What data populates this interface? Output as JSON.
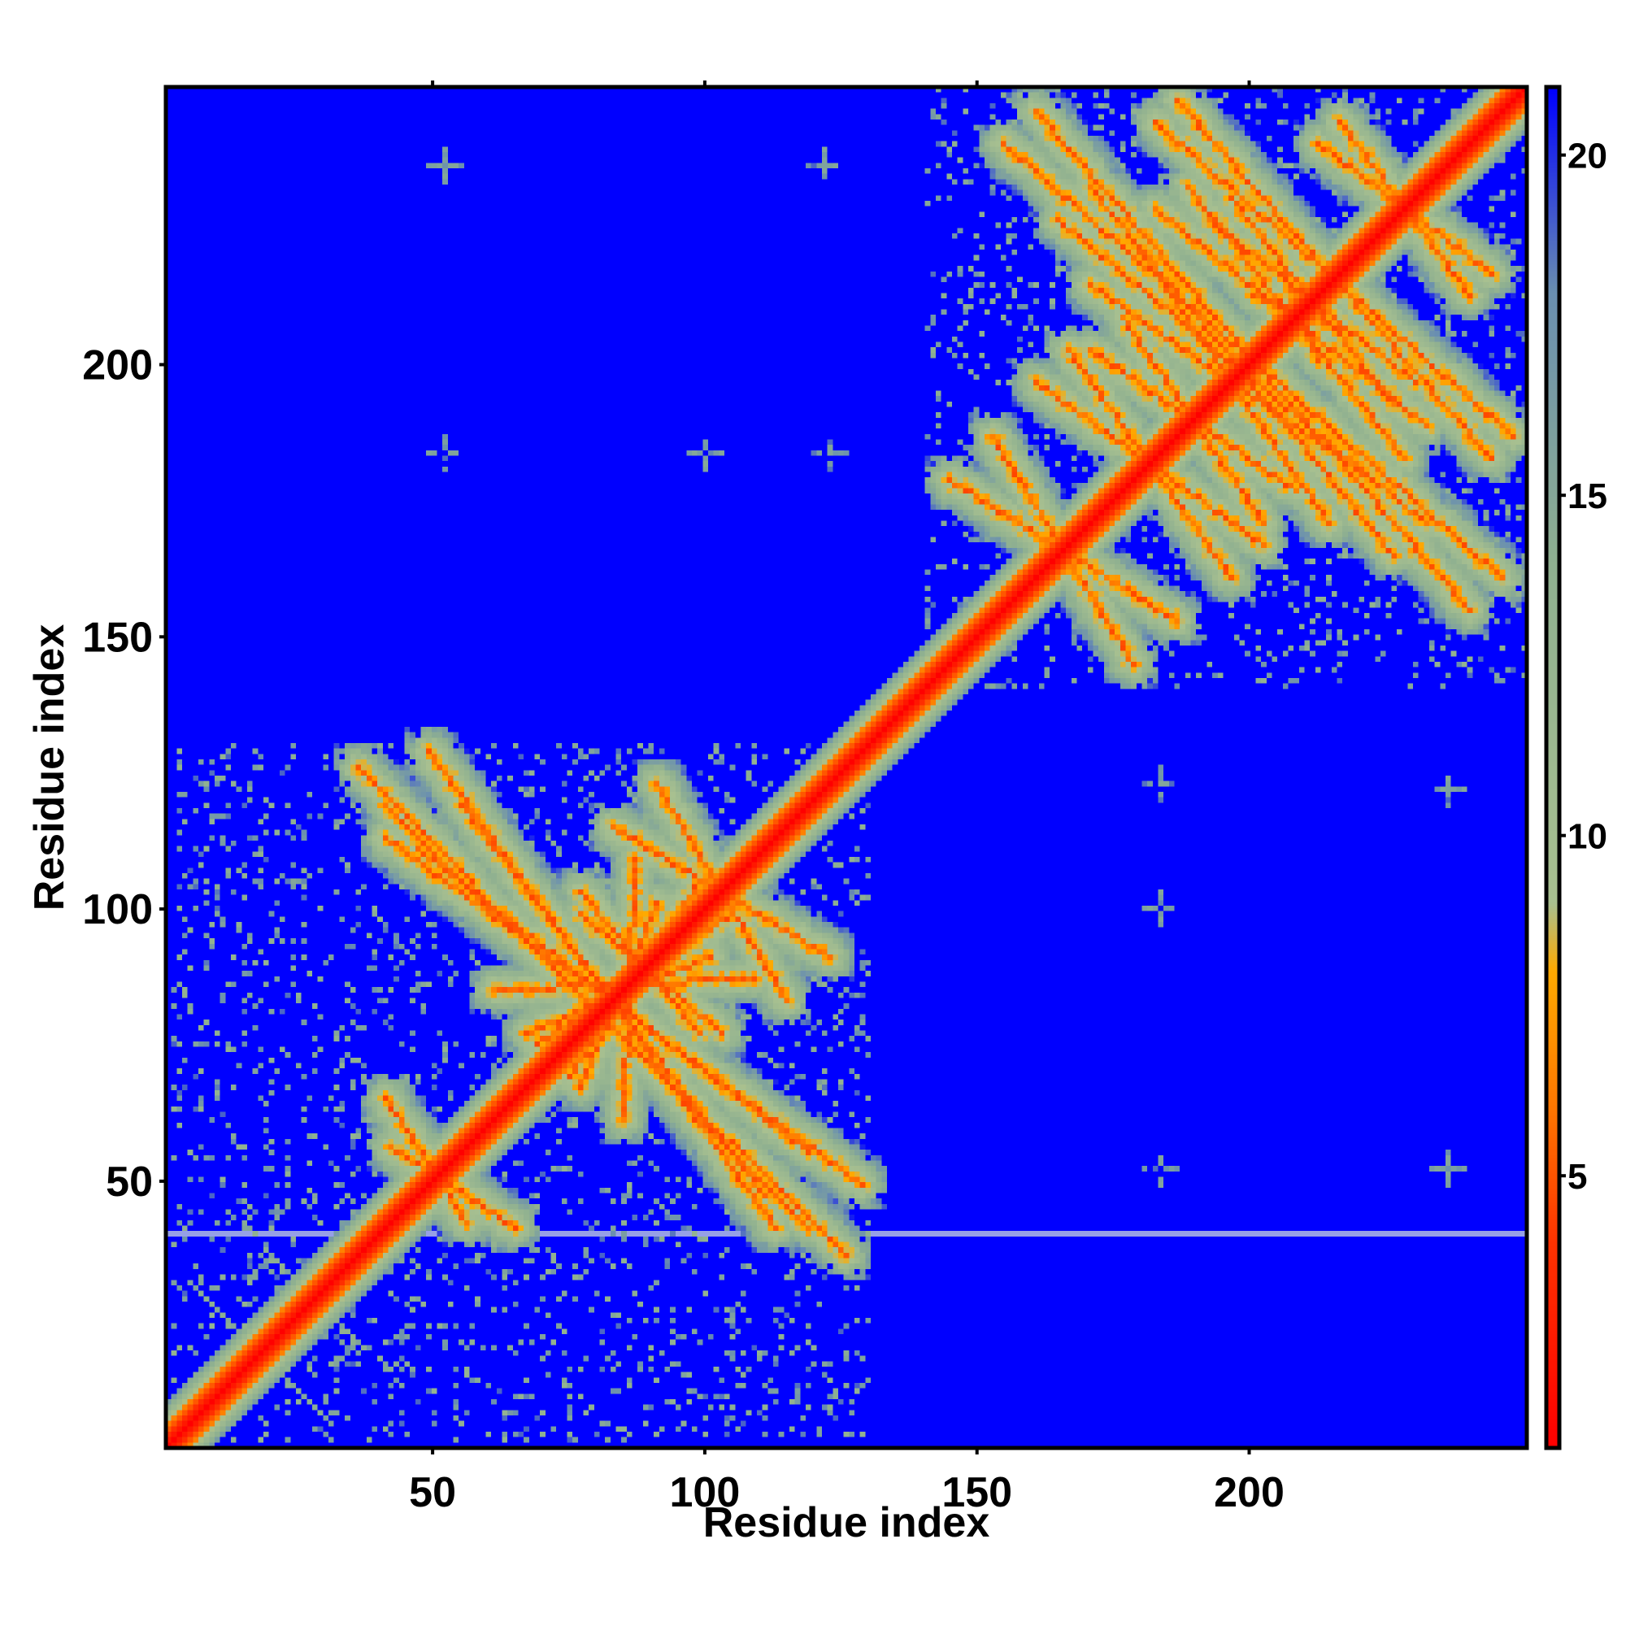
{
  "chart_data": {
    "type": "heatmap",
    "title": "",
    "xlabel": "Residue index",
    "ylabel": "Residue index",
    "xlim": [
      1,
      251
    ],
    "ylim": [
      1,
      251
    ],
    "x_ticks": [
      50,
      100,
      150,
      200
    ],
    "y_ticks": [
      50,
      100,
      150,
      200
    ],
    "x_tick_labels": [
      "50",
      "100",
      "150",
      "200"
    ],
    "y_tick_labels": [
      "50",
      "100",
      "150",
      "200"
    ],
    "n_residues": 251,
    "grid": false,
    "colorbar": {
      "range": [
        1,
        21
      ],
      "ticks": [
        5,
        10,
        15,
        20
      ],
      "tick_labels": [
        "5",
        "10",
        "15",
        "20"
      ],
      "stops": [
        {
          "value": 1,
          "color": "#ff0000"
        },
        {
          "value": 4,
          "color": "#ff3300"
        },
        {
          "value": 6,
          "color": "#ff7700"
        },
        {
          "value": 8,
          "color": "#ffaa00"
        },
        {
          "value": 9,
          "color": "#a8c090"
        },
        {
          "value": 14,
          "color": "#8fb090"
        },
        {
          "value": 18,
          "color": "#6a8fb0"
        },
        {
          "value": 21,
          "color": "#0000ff"
        }
      ]
    },
    "background_value": 21,
    "domains": [
      {
        "start": 1,
        "end": 130,
        "strand_pairs": [
          [
            40,
            64,
            55,
            41
          ],
          [
            48,
            128,
            112,
            40
          ],
          [
            60,
            84,
            108,
            86
          ],
          [
            66,
            76,
            100,
            90
          ],
          [
            76,
            102,
            98,
            76
          ],
          [
            90,
            122,
            114,
            82
          ],
          [
            98,
            104,
            74,
            68
          ],
          [
            54,
            118,
            110,
            46
          ],
          [
            35,
            125,
            118,
            40
          ]
        ]
      },
      {
        "start": 140,
        "end": 251,
        "strand_pairs": [
          [
            152,
            186,
            178,
            144
          ],
          [
            160,
            246,
            240,
            154
          ],
          [
            170,
            232,
            226,
            164
          ],
          [
            176,
            208,
            202,
            170
          ],
          [
            186,
            248,
            244,
            182
          ],
          [
            196,
            230,
            226,
            192
          ],
          [
            206,
            216,
            212,
            200
          ],
          [
            216,
            244,
            240,
            212
          ],
          [
            222,
            178,
            170,
            214
          ],
          [
            232,
            188,
            182,
            228
          ],
          [
            166,
            202,
            196,
            160
          ]
        ]
      }
    ],
    "n_terminal_helix_pairs": [
      [
        4,
        30,
        28,
        6
      ],
      [
        18,
        36,
        34,
        20
      ]
    ],
    "isolated_contacts": [
      [
        52,
        237
      ],
      [
        52,
        184
      ],
      [
        100,
        184
      ],
      [
        122,
        237
      ],
      [
        123,
        184
      ],
      [
        184,
        52
      ],
      [
        184,
        123
      ],
      [
        184,
        100
      ],
      [
        237,
        52
      ],
      [
        237,
        122
      ]
    ],
    "horizontal_artifact_y": 40
  }
}
